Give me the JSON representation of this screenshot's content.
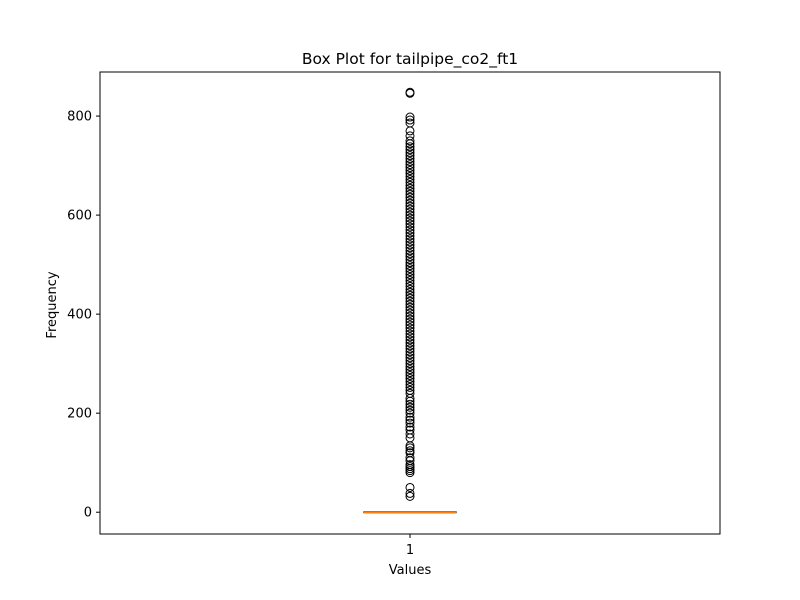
{
  "chart_data": {
    "type": "box",
    "title": "Box Plot for tailpipe_co2_ft1",
    "xlabel": "Values",
    "ylabel": "Frequency",
    "categories": [
      "1"
    ],
    "ylim": [
      -44,
      889
    ],
    "yticks": [
      0,
      200,
      400,
      600,
      800
    ],
    "grid": false,
    "box": {
      "q1": 0,
      "median": 0,
      "q3": 0,
      "whisker_low": 0,
      "whisker_high": 0
    },
    "outliers": [
      32,
      38,
      50,
      80,
      84,
      88,
      92,
      96,
      104,
      110,
      120,
      124,
      130,
      134,
      150,
      158,
      166,
      172,
      180,
      186,
      192,
      200,
      206,
      212,
      218,
      224,
      230,
      240,
      246,
      252,
      258,
      264,
      270,
      276,
      282,
      288,
      294,
      300,
      306,
      312,
      318,
      324,
      330,
      336,
      342,
      348,
      354,
      360,
      366,
      372,
      378,
      384,
      390,
      396,
      402,
      408,
      414,
      420,
      426,
      432,
      438,
      444,
      450,
      456,
      462,
      468,
      474,
      480,
      486,
      492,
      498,
      504,
      510,
      516,
      522,
      528,
      534,
      540,
      546,
      552,
      558,
      564,
      570,
      576,
      582,
      588,
      594,
      600,
      606,
      612,
      618,
      624,
      630,
      636,
      642,
      648,
      654,
      660,
      666,
      672,
      678,
      684,
      690,
      696,
      702,
      708,
      714,
      720,
      726,
      732,
      738,
      744,
      750,
      760,
      770,
      786,
      792,
      798,
      846,
      848
    ],
    "colors": {
      "median": "#ff7f0e",
      "box": "#000000",
      "outlier_edge": "#000000"
    }
  }
}
